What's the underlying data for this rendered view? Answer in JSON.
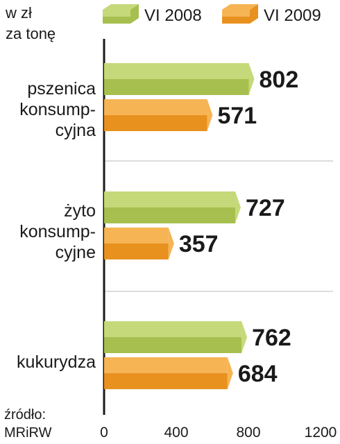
{
  "chart_data": {
    "type": "bar",
    "orientation": "horizontal",
    "unit_label": [
      "w zł",
      "za tonę"
    ],
    "categories": [
      [
        "pszenica",
        "konsump-",
        "cyjna"
      ],
      [
        "żyto",
        "konsump-",
        "cyjne"
      ],
      [
        "kukurydza"
      ]
    ],
    "series": [
      {
        "name": "VI 2008",
        "values": [
          802,
          727,
          762
        ],
        "color_light": "#c5d97a",
        "color_dark": "#a6bf4e"
      },
      {
        "name": "VI 2009",
        "values": [
          571,
          357,
          684
        ],
        "color_light": "#f6b455",
        "color_dark": "#e8911f"
      }
    ],
    "xlim": [
      0,
      1200
    ],
    "xticks": [
      "0",
      "400",
      "800",
      "1200"
    ],
    "legend_position": "top",
    "source": [
      "źródło:",
      "MRiRW"
    ]
  }
}
